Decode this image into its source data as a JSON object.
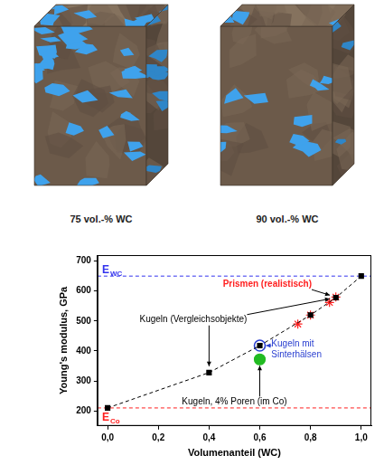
{
  "images": [
    {
      "caption": "75 vol.-% WC"
    },
    {
      "caption": "90 vol.-% WC"
    }
  ],
  "chart_data": {
    "type": "scatter",
    "xlabel": "Volumenanteil (WC)",
    "ylabel": "Young's modulus, GPa",
    "xlim": [
      -0.04,
      1.04
    ],
    "ylim": [
      150,
      720
    ],
    "xticks": [
      {
        "value": 0,
        "label": "0,0"
      },
      {
        "value": 0.2,
        "label": "0,2"
      },
      {
        "value": 0.4,
        "label": "0,4"
      },
      {
        "value": 0.6,
        "label": "0,6"
      },
      {
        "value": 0.8,
        "label": "0,8"
      },
      {
        "value": 1,
        "label": "1,0"
      }
    ],
    "yticks": [
      200,
      300,
      400,
      500,
      600,
      700
    ],
    "grid": false,
    "series": [
      {
        "name": "Kugeln (Vergleichsobjekte)",
        "color": "#000000",
        "marker": "square",
        "line_style": "dashed",
        "x": [
          0,
          0.4,
          0.6,
          0.8,
          0.9,
          1.0
        ],
        "values": [
          210,
          328,
          418,
          520,
          578,
          650
        ]
      },
      {
        "name": "Prismen (realistisch)",
        "color": "#ff2020",
        "marker": "star",
        "line_style": "none",
        "x": [
          0.75,
          0.8,
          0.875,
          0.9
        ],
        "values": [
          490,
          520,
          562,
          580
        ]
      },
      {
        "name": "Kugeln mit Sinterhälsen",
        "color": "#2a3fd0",
        "marker": "circle_open",
        "line_style": "none",
        "x": [
          0.6
        ],
        "values": [
          418
        ]
      },
      {
        "name": "Kugeln, 4% Poren (im Co)",
        "color": "#22bb22",
        "marker": "circle",
        "line_style": "none",
        "x": [
          0.6
        ],
        "values": [
          372
        ]
      }
    ],
    "reference_lines": [
      {
        "value": 650,
        "label": "E",
        "label_sub": "WC",
        "color": "#3333ee",
        "line_style": "dashed"
      },
      {
        "value": 210,
        "label": "E",
        "label_sub": "Co",
        "color": "#ff2020",
        "line_style": "dashed"
      }
    ]
  }
}
